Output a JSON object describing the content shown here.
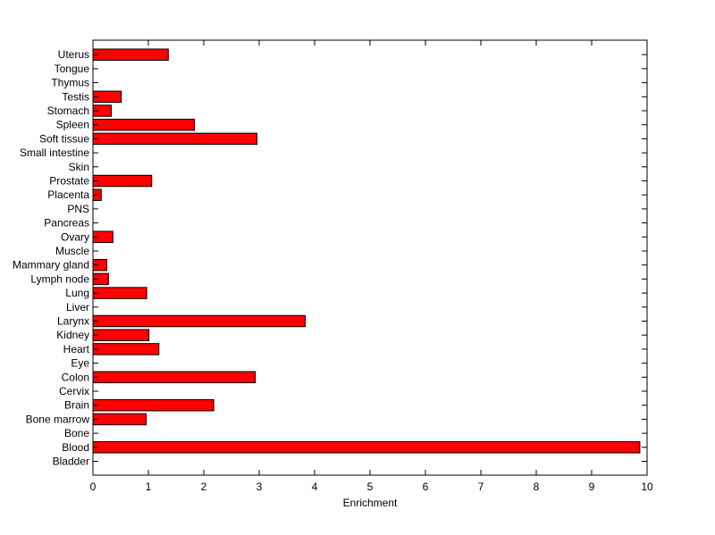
{
  "chart_data": {
    "type": "bar",
    "orientation": "horizontal",
    "xlabel": "Enrichment",
    "ylabel": "",
    "title": "",
    "xlim": [
      0,
      10
    ],
    "xticks": [
      0,
      1,
      2,
      3,
      4,
      5,
      6,
      7,
      8,
      9,
      10
    ],
    "grid": false,
    "bar_color": "#ff0000",
    "bar_edge_color": "#000000",
    "categories": [
      "Bladder",
      "Blood",
      "Bone",
      "Bone marrow",
      "Brain",
      "Cervix",
      "Colon",
      "Eye",
      "Heart",
      "Kidney",
      "Larynx",
      "Liver",
      "Lung",
      "Lymph node",
      "Mammary gland",
      "Muscle",
      "Ovary",
      "Pancreas",
      "PNS",
      "Placenta",
      "Prostate",
      "Skin",
      "Small intestine",
      "Soft tissue",
      "Spleen",
      "Stomach",
      "Testis",
      "Thymus",
      "Tongue",
      "Uterus"
    ],
    "values": [
      0,
      9.87,
      0,
      0.96,
      2.18,
      0,
      2.93,
      0,
      1.19,
      1.01,
      3.83,
      0,
      0.97,
      0.28,
      0.25,
      0,
      0.36,
      0,
      0,
      0.15,
      1.06,
      0,
      0,
      2.96,
      1.83,
      0.33,
      0.51,
      0,
      0,
      1.36
    ]
  }
}
